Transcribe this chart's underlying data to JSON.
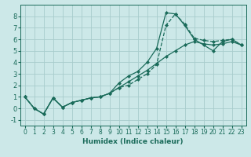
{
  "xlabel": "Humidex (Indice chaleur)",
  "ylabel": "",
  "bg_color": "#cce8e8",
  "grid_color": "#a8cccc",
  "line_color": "#1a6b5a",
  "marker_color": "#1a6b5a",
  "xlim": [
    -0.5,
    23.5
  ],
  "ylim": [
    -1.5,
    9.0
  ],
  "xticks": [
    0,
    1,
    2,
    3,
    4,
    5,
    6,
    7,
    8,
    9,
    10,
    11,
    12,
    13,
    14,
    15,
    16,
    17,
    18,
    19,
    20,
    21,
    22,
    23
  ],
  "yticks": [
    -1,
    0,
    1,
    2,
    3,
    4,
    5,
    6,
    7,
    8
  ],
  "series": [
    {
      "x": [
        0,
        1,
        2,
        3,
        4,
        5,
        6,
        7,
        8,
        9,
        10,
        11,
        12,
        13,
        14,
        15,
        16,
        17,
        18,
        19,
        20,
        21,
        22,
        23
      ],
      "y": [
        1.0,
        0.0,
        -0.5,
        0.9,
        0.1,
        0.5,
        0.7,
        0.9,
        1.0,
        1.3,
        1.8,
        2.0,
        2.5,
        3.0,
        3.8,
        7.2,
        8.2,
        7.3,
        6.1,
        5.9,
        5.8,
        5.9,
        6.0,
        5.5
      ],
      "linestyle": "--",
      "marker": "D",
      "markersize": 2.0
    },
    {
      "x": [
        0,
        1,
        2,
        3,
        4,
        5,
        6,
        7,
        8,
        9,
        10,
        11,
        12,
        13,
        14,
        15,
        16,
        17,
        18,
        19,
        20,
        21,
        22,
        23
      ],
      "y": [
        1.0,
        0.0,
        -0.5,
        0.9,
        0.1,
        0.5,
        0.7,
        0.9,
        1.0,
        1.3,
        2.2,
        2.8,
        3.2,
        4.0,
        5.2,
        8.3,
        8.2,
        7.2,
        6.0,
        5.5,
        5.0,
        5.8,
        6.0,
        5.5
      ],
      "linestyle": "-",
      "marker": "D",
      "markersize": 2.0
    },
    {
      "x": [
        0,
        1,
        2,
        3,
        4,
        5,
        6,
        7,
        8,
        9,
        10,
        11,
        12,
        13,
        14,
        15,
        16,
        17,
        18,
        19,
        20,
        21,
        22,
        23
      ],
      "y": [
        1.0,
        0.0,
        -0.5,
        0.9,
        0.1,
        0.5,
        0.7,
        0.9,
        1.0,
        1.3,
        1.8,
        2.3,
        2.8,
        3.3,
        3.9,
        4.5,
        5.0,
        5.5,
        5.8,
        5.6,
        5.5,
        5.6,
        5.8,
        5.5
      ],
      "linestyle": "-",
      "marker": "D",
      "markersize": 2.0
    }
  ],
  "xlabel_fontsize": 6.5,
  "xlabel_fontweight": "bold",
  "tick_fontsize": 5.5,
  "linewidth": 0.9
}
